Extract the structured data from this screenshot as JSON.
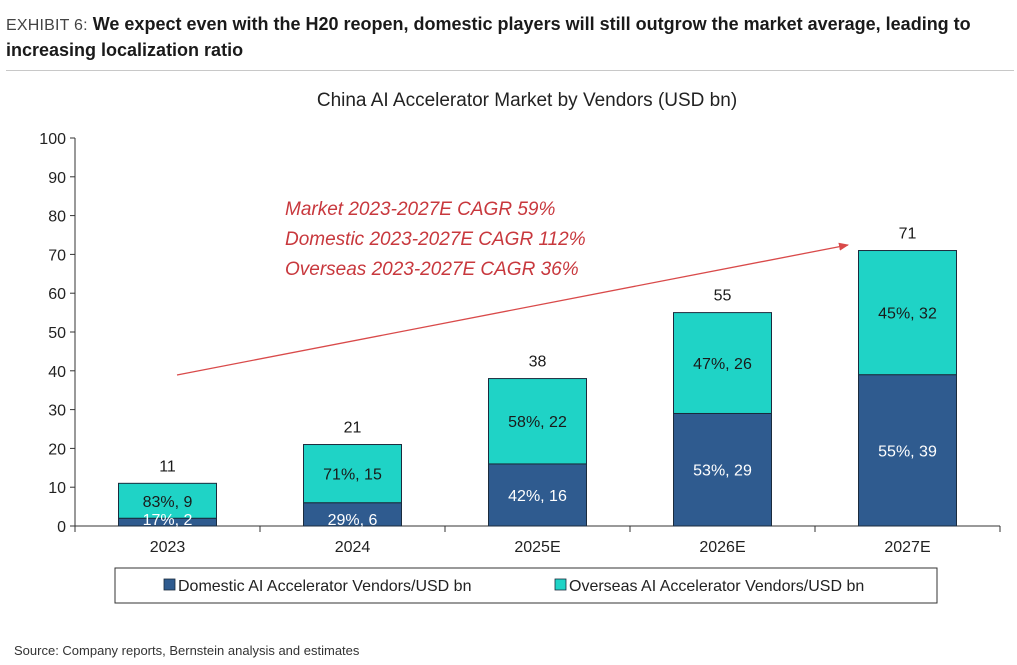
{
  "exhibit": {
    "label": "EXHIBIT 6:",
    "title": "We expect even with the H20 reopen, domestic players will still outgrow the market average, leading to increasing localization ratio"
  },
  "source": "Source: Company reports, Bernstein analysis and estimates",
  "colors": {
    "domestic": "#2f5b8f",
    "overseas": "#1fd3c6",
    "annotation": "#c8383d",
    "arrow": "#d94a4a"
  },
  "chart_data": {
    "type": "bar",
    "stacked": true,
    "title": "China AI Accelerator Market by Vendors (USD bn)",
    "categories": [
      "2023",
      "2024",
      "2025E",
      "2026E",
      "2027E"
    ],
    "series": [
      {
        "name": "Domestic AI  Accelerator Vendors/USD bn",
        "values": [
          2,
          6,
          16,
          29,
          39
        ],
        "labels": [
          "17%, 2",
          "29%, 6",
          "42%, 16",
          "53%, 29",
          "55%, 39"
        ]
      },
      {
        "name": "Overseas AI Accelerator Vendors/USD bn",
        "values": [
          9,
          15,
          22,
          26,
          32
        ],
        "labels": [
          "83%, 9",
          "71%, 15",
          "58%, 22",
          "47%, 26",
          "45%, 32"
        ]
      }
    ],
    "totals": [
      "11",
      "21",
      "38",
      "55",
      "71"
    ],
    "ylim": [
      0,
      100
    ],
    "yticks": [
      "0",
      "10",
      "20",
      "30",
      "40",
      "50",
      "60",
      "70",
      "80",
      "90",
      "100"
    ],
    "legend_position": "bottom",
    "grid": false,
    "annotations": [
      "Market 2023-2027E CAGR 59%",
      "Domestic 2023-2027E CAGR 112%",
      "Overseas 2023-2027E CAGR 36%"
    ]
  }
}
